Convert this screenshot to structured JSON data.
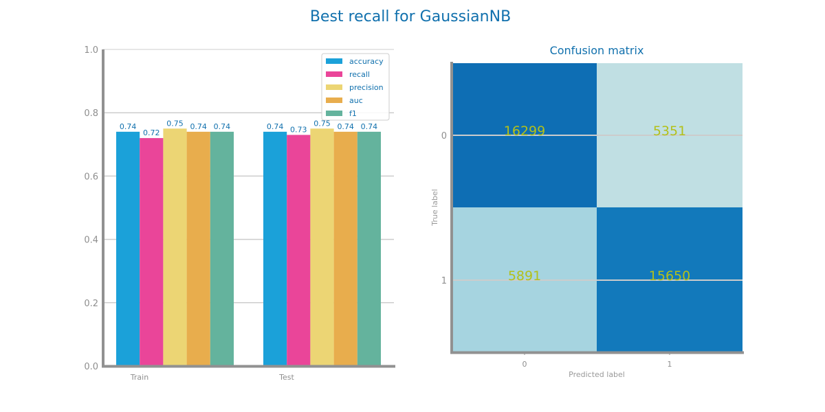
{
  "figure_title": "Best recall for GaussianNB",
  "colors": {
    "accuracy": "#1ba1d9",
    "recall": "#ea4599",
    "precision": "#ecd574",
    "auc": "#e8ad4d",
    "f1": "#64b39d",
    "title": "#1070ad",
    "cell_text": "#b3c01a",
    "axis": "#919191",
    "grid": "#cccccc"
  },
  "chart_data": [
    {
      "type": "bar",
      "categories": [
        "Train",
        "Test"
      ],
      "series": [
        {
          "name": "accuracy",
          "values": [
            0.74,
            0.74
          ]
        },
        {
          "name": "recall",
          "values": [
            0.72,
            0.73
          ]
        },
        {
          "name": "precision",
          "values": [
            0.75,
            0.75
          ]
        },
        {
          "name": "auc",
          "values": [
            0.74,
            0.74
          ]
        },
        {
          "name": "f1",
          "values": [
            0.74,
            0.74
          ]
        }
      ],
      "ylim": [
        0,
        1.0
      ],
      "yticks": [
        "0.0",
        "0.2",
        "0.4",
        "0.6",
        "0.8",
        "1.0"
      ],
      "grid": true,
      "legend": "top-right",
      "data_labels": true
    },
    {
      "type": "heatmap",
      "title": "Confusion matrix",
      "xlabel": "Predicted label",
      "ylabel": "True label",
      "xticks": [
        "0",
        "1"
      ],
      "yticks": [
        "0",
        "1"
      ],
      "matrix": [
        [
          16299,
          5351
        ],
        [
          5891,
          15650
        ]
      ],
      "cell_colors": [
        [
          "#0e6eb4",
          "#c0dfe3"
        ],
        [
          "#a6d4e0",
          "#1279bb"
        ]
      ]
    }
  ]
}
